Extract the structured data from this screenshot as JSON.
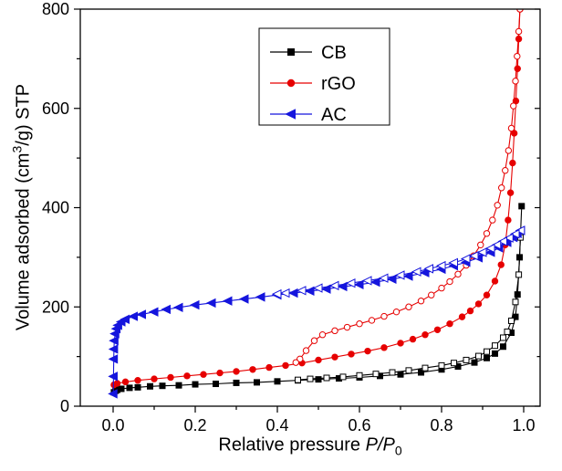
{
  "chart_data": {
    "type": "line",
    "title": "",
    "xlabel": "Relative pressure P/P0",
    "xlabel_parts": {
      "pre": "Relative pressure ",
      "italic": "P/P",
      "sub": "0"
    },
    "ylabel": "Volume adsorbed (cm3/g) STP",
    "ylabel_parts": {
      "pre": "Volume adsorbed (cm",
      "sup": "3",
      "post": "/g)  STP"
    },
    "xlim": [
      -0.08,
      1.04
    ],
    "ylim": [
      0,
      800
    ],
    "grid": false,
    "legend_position": "top-center",
    "xticks": {
      "values": [
        0.0,
        0.2,
        0.4,
        0.6,
        0.8,
        1.0
      ],
      "labels": [
        "0.0",
        "0.2",
        "0.4",
        "0.6",
        "0.8",
        "1.0"
      ],
      "minor": [
        0.1,
        0.3,
        0.5,
        0.7,
        0.9
      ]
    },
    "yticks": {
      "values": [
        0,
        200,
        400,
        600,
        800
      ],
      "labels": [
        "0",
        "200",
        "400",
        "600",
        "800"
      ],
      "minor": [
        100,
        300,
        500,
        700
      ]
    },
    "series": [
      {
        "name": "CB",
        "color": "#000000",
        "marker": "square",
        "adsorption": [
          [
            0.002,
            28
          ],
          [
            0.006,
            31
          ],
          [
            0.01,
            33
          ],
          [
            0.02,
            35
          ],
          [
            0.04,
            37
          ],
          [
            0.06,
            38
          ],
          [
            0.09,
            40
          ],
          [
            0.12,
            41
          ],
          [
            0.16,
            42
          ],
          [
            0.2,
            44
          ],
          [
            0.25,
            45
          ],
          [
            0.3,
            47
          ],
          [
            0.35,
            48
          ],
          [
            0.4,
            50
          ],
          [
            0.45,
            52
          ],
          [
            0.5,
            54
          ],
          [
            0.55,
            56
          ],
          [
            0.6,
            58
          ],
          [
            0.65,
            61
          ],
          [
            0.7,
            64
          ],
          [
            0.75,
            68
          ],
          [
            0.8,
            74
          ],
          [
            0.84,
            80
          ],
          [
            0.88,
            88
          ],
          [
            0.91,
            97
          ],
          [
            0.93,
            106
          ],
          [
            0.95,
            120
          ],
          [
            0.97,
            148
          ],
          [
            0.98,
            180
          ],
          [
            0.985,
            225
          ],
          [
            0.99,
            300
          ],
          [
            0.995,
            403
          ]
        ],
        "desorption": [
          [
            0.992,
            340
          ],
          [
            0.988,
            265
          ],
          [
            0.98,
            210
          ],
          [
            0.97,
            172
          ],
          [
            0.96,
            150
          ],
          [
            0.95,
            138
          ],
          [
            0.93,
            122
          ],
          [
            0.91,
            110
          ],
          [
            0.89,
            101
          ],
          [
            0.86,
            93
          ],
          [
            0.83,
            87
          ],
          [
            0.8,
            82
          ],
          [
            0.76,
            77
          ],
          [
            0.72,
            72
          ],
          [
            0.68,
            68
          ],
          [
            0.64,
            65
          ],
          [
            0.6,
            62
          ],
          [
            0.56,
            59
          ],
          [
            0.52,
            57
          ],
          [
            0.48,
            55
          ],
          [
            0.45,
            53
          ]
        ]
      },
      {
        "name": "rGO",
        "color": "#e60000",
        "marker": "circle",
        "adsorption": [
          [
            0.002,
            43
          ],
          [
            0.01,
            46
          ],
          [
            0.03,
            49
          ],
          [
            0.06,
            52
          ],
          [
            0.1,
            55
          ],
          [
            0.14,
            58
          ],
          [
            0.18,
            61
          ],
          [
            0.22,
            64
          ],
          [
            0.26,
            67
          ],
          [
            0.3,
            70
          ],
          [
            0.34,
            74
          ],
          [
            0.38,
            78
          ],
          [
            0.42,
            82
          ],
          [
            0.46,
            87
          ],
          [
            0.5,
            93
          ],
          [
            0.54,
            99
          ],
          [
            0.58,
            105
          ],
          [
            0.62,
            111
          ],
          [
            0.66,
            118
          ],
          [
            0.7,
            127
          ],
          [
            0.73,
            135
          ],
          [
            0.76,
            144
          ],
          [
            0.79,
            154
          ],
          [
            0.82,
            166
          ],
          [
            0.85,
            180
          ],
          [
            0.87,
            192
          ],
          [
            0.89,
            206
          ],
          [
            0.91,
            224
          ],
          [
            0.93,
            252
          ],
          [
            0.945,
            285
          ],
          [
            0.955,
            325
          ],
          [
            0.962,
            375
          ],
          [
            0.968,
            430
          ],
          [
            0.973,
            490
          ],
          [
            0.977,
            550
          ],
          [
            0.981,
            615
          ],
          [
            0.985,
            680
          ],
          [
            0.988,
            740
          ],
          [
            0.991,
            800
          ]
        ],
        "desorption": [
          [
            0.991,
            800
          ],
          [
            0.988,
            755
          ],
          [
            0.984,
            705
          ],
          [
            0.98,
            655
          ],
          [
            0.975,
            605
          ],
          [
            0.97,
            560
          ],
          [
            0.963,
            515
          ],
          [
            0.955,
            475
          ],
          [
            0.946,
            440
          ],
          [
            0.936,
            405
          ],
          [
            0.924,
            375
          ],
          [
            0.91,
            348
          ],
          [
            0.895,
            325
          ],
          [
            0.878,
            303
          ],
          [
            0.86,
            284
          ],
          [
            0.84,
            266
          ],
          [
            0.82,
            251
          ],
          [
            0.8,
            238
          ],
          [
            0.775,
            224
          ],
          [
            0.75,
            212
          ],
          [
            0.72,
            200
          ],
          [
            0.69,
            190
          ],
          [
            0.66,
            181
          ],
          [
            0.63,
            173
          ],
          [
            0.6,
            166
          ],
          [
            0.57,
            159
          ],
          [
            0.54,
            152
          ],
          [
            0.51,
            144
          ],
          [
            0.49,
            132
          ],
          [
            0.47,
            112
          ],
          [
            0.455,
            95
          ],
          [
            0.445,
            88
          ]
        ]
      },
      {
        "name": "AC",
        "color": "#1515dd",
        "marker": "triangle-left",
        "adsorption": [
          [
            0.0005,
            25
          ],
          [
            0.001,
            60
          ],
          [
            0.0015,
            95
          ],
          [
            0.002,
            115
          ],
          [
            0.003,
            132
          ],
          [
            0.005,
            146
          ],
          [
            0.008,
            156
          ],
          [
            0.012,
            163
          ],
          [
            0.02,
            170
          ],
          [
            0.03,
            175
          ],
          [
            0.05,
            181
          ],
          [
            0.07,
            185
          ],
          [
            0.1,
            190
          ],
          [
            0.13,
            195
          ],
          [
            0.16,
            199
          ],
          [
            0.2,
            204
          ],
          [
            0.24,
            208
          ],
          [
            0.28,
            212
          ],
          [
            0.32,
            216
          ],
          [
            0.36,
            220
          ],
          [
            0.4,
            224
          ],
          [
            0.44,
            228
          ],
          [
            0.48,
            232
          ],
          [
            0.52,
            236
          ],
          [
            0.56,
            241
          ],
          [
            0.6,
            245
          ],
          [
            0.64,
            250
          ],
          [
            0.68,
            256
          ],
          [
            0.72,
            262
          ],
          [
            0.76,
            269
          ],
          [
            0.8,
            276
          ],
          [
            0.83,
            283
          ],
          [
            0.86,
            290
          ],
          [
            0.89,
            299
          ],
          [
            0.92,
            310
          ],
          [
            0.94,
            319
          ],
          [
            0.96,
            330
          ],
          [
            0.975,
            340
          ],
          [
            0.985,
            348
          ],
          [
            0.993,
            354
          ]
        ],
        "desorption": [
          [
            0.993,
            354
          ],
          [
            0.98,
            347
          ],
          [
            0.965,
            339
          ],
          [
            0.95,
            332
          ],
          [
            0.935,
            325
          ],
          [
            0.92,
            318
          ],
          [
            0.9,
            310
          ],
          [
            0.88,
            303
          ],
          [
            0.86,
            297
          ],
          [
            0.83,
            289
          ],
          [
            0.8,
            283
          ],
          [
            0.77,
            277
          ],
          [
            0.74,
            271
          ],
          [
            0.7,
            264
          ],
          [
            0.66,
            258
          ],
          [
            0.62,
            253
          ],
          [
            0.58,
            248
          ],
          [
            0.54,
            243
          ],
          [
            0.5,
            238
          ],
          [
            0.46,
            233
          ],
          [
            0.42,
            228
          ],
          [
            0.4,
            226
          ]
        ]
      }
    ],
    "legend_entries": [
      "CB",
      "rGO",
      "AC"
    ]
  }
}
